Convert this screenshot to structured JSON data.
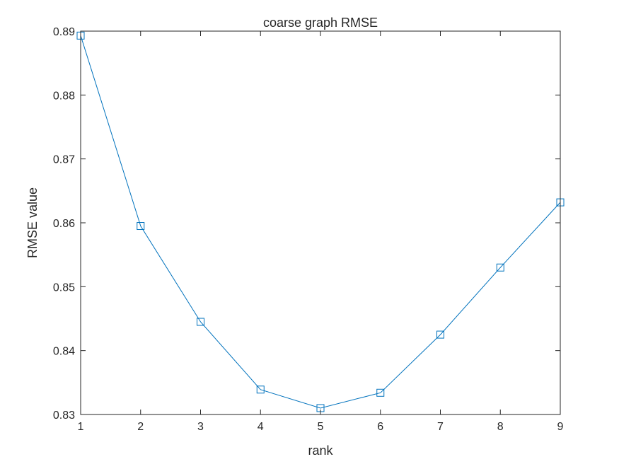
{
  "chart_data": {
    "type": "line",
    "title": "coarse graph RMSE",
    "xlabel": "rank",
    "ylabel": "RMSE value",
    "xlim": [
      1,
      9
    ],
    "ylim": [
      0.83,
      0.89
    ],
    "x_ticks": [
      1,
      2,
      3,
      4,
      5,
      6,
      7,
      8,
      9
    ],
    "y_ticks": [
      0.83,
      0.84,
      0.85,
      0.86,
      0.87,
      0.88,
      0.89
    ],
    "x_tick_labels": [
      "1",
      "2",
      "3",
      "4",
      "5",
      "6",
      "7",
      "8",
      "9"
    ],
    "y_tick_labels": [
      "0.83",
      "0.84",
      "0.85",
      "0.86",
      "0.87",
      "0.88",
      "0.89"
    ],
    "grid": false,
    "marker": "square",
    "line_color": "#0072BD",
    "series": [
      {
        "x": [
          1,
          2,
          3,
          4,
          5,
          6,
          7,
          8,
          9
        ],
        "values": [
          0.8893,
          0.8595,
          0.8445,
          0.8339,
          0.831,
          0.8334,
          0.8425,
          0.853,
          0.8632
        ]
      }
    ]
  }
}
